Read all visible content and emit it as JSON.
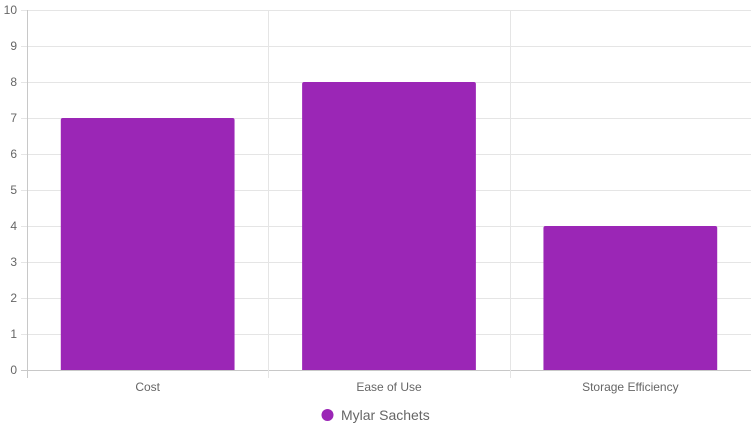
{
  "chart_data": {
    "type": "bar",
    "categories": [
      "Cost",
      "Ease of Use",
      "Storage Efficiency"
    ],
    "series": [
      {
        "name": "Mylar Sachets",
        "values": [
          7,
          8,
          4
        ],
        "color": "#9b26b6"
      }
    ],
    "ylim": [
      0,
      10
    ],
    "yticks": [
      "0",
      "1",
      "2",
      "3",
      "4",
      "5",
      "6",
      "7",
      "8",
      "9",
      "10"
    ],
    "grid": true,
    "legend_position": "bottom"
  },
  "colors": {
    "grid": "#e5e5e5",
    "axis": "#c8c8c8",
    "text": "#666666"
  }
}
